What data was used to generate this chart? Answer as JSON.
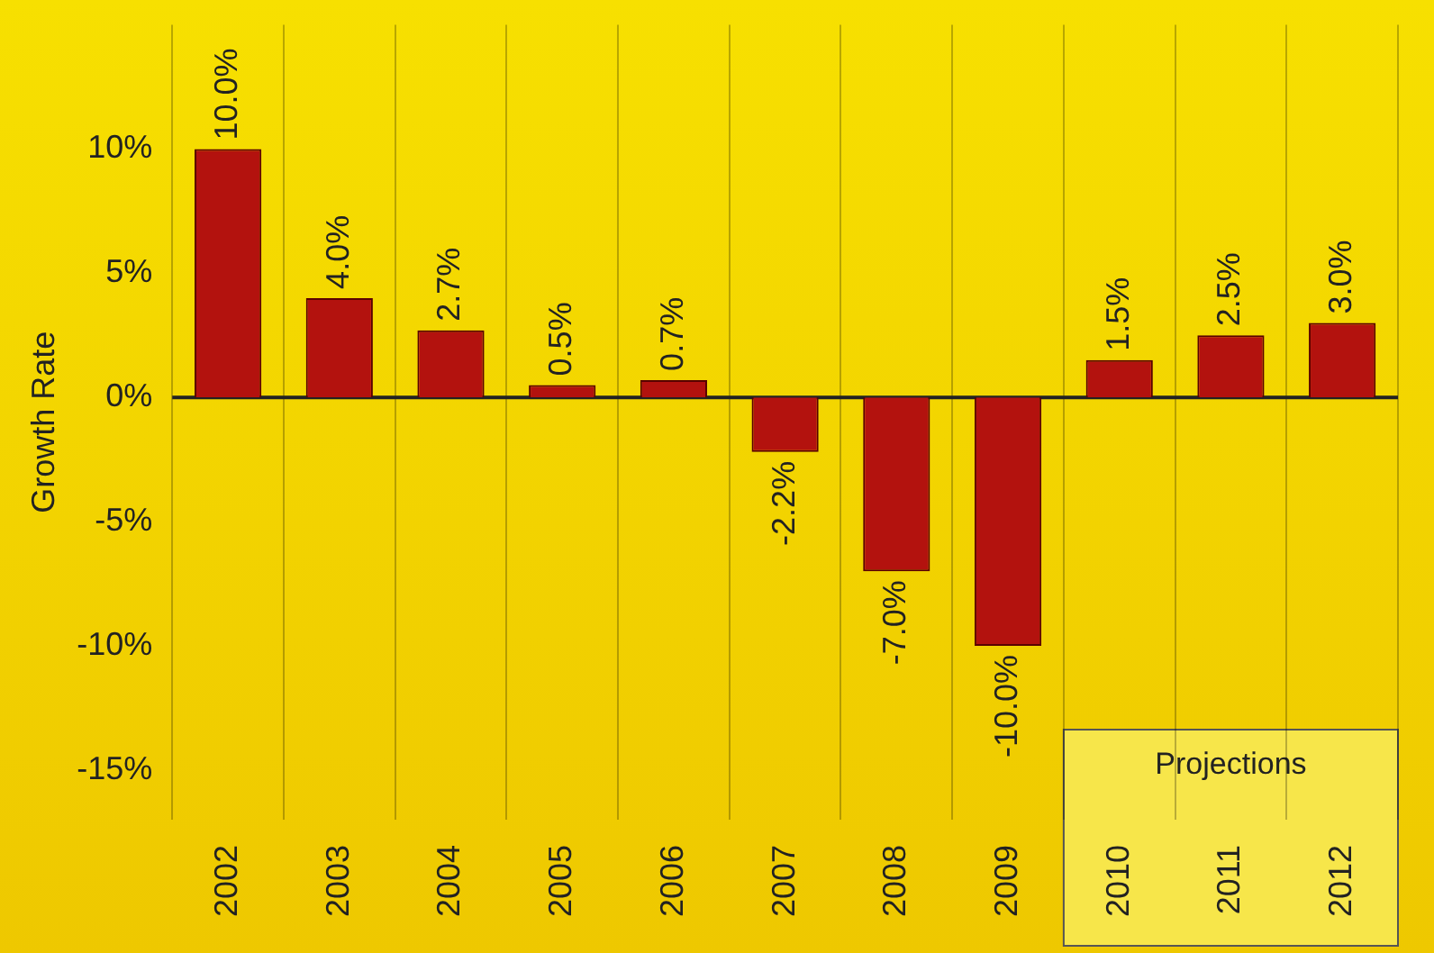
{
  "chart_data": {
    "type": "bar",
    "ylabel": "Growth Rate",
    "categories": [
      "2002",
      "2003",
      "2004",
      "2005",
      "2006",
      "2007",
      "2008",
      "2009",
      "2010",
      "2011",
      "2012"
    ],
    "values": [
      10.0,
      4.0,
      2.7,
      0.5,
      0.7,
      -2.2,
      -7.0,
      -10.0,
      1.5,
      2.5,
      3.0
    ],
    "value_labels": [
      "10.0%",
      "4.0%",
      "2.7%",
      "0.5%",
      "0.7%",
      "-2.2%",
      "-7.0%",
      "-10.0%",
      "1.5%",
      "2.5%",
      "3.0%"
    ],
    "color": "#b3120e",
    "ylim": [
      -17,
      15
    ],
    "yticks": [
      {
        "value": -15,
        "label": "-15%"
      },
      {
        "value": -10,
        "label": "-10%"
      },
      {
        "value": -5,
        "label": "-5%"
      },
      {
        "value": 0,
        "label": "0%"
      },
      {
        "value": 5,
        "label": "5%"
      },
      {
        "value": 10,
        "label": "10%"
      }
    ],
    "grid": "x",
    "bands": [
      {
        "axis": "x",
        "from": "2010",
        "to": "2012",
        "label": "Projections",
        "color": "#f7e64a"
      }
    ]
  }
}
